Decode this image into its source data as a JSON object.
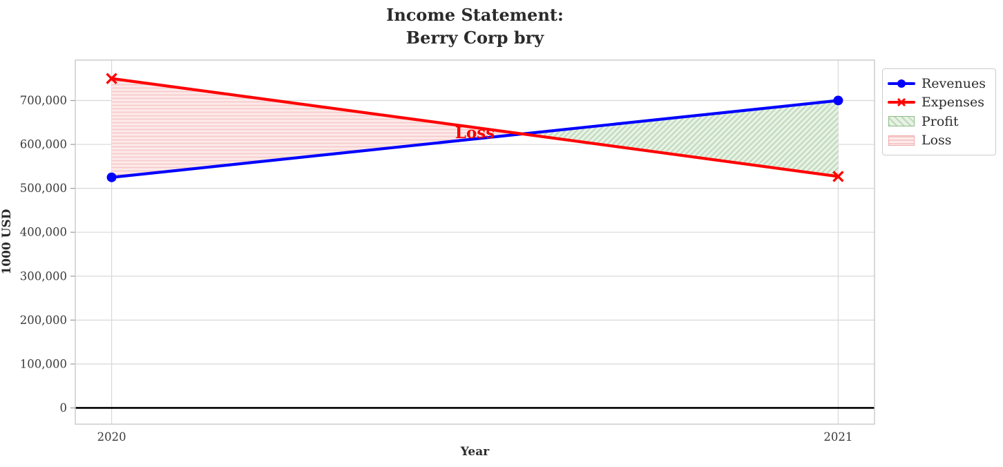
{
  "title": {
    "line1": "Income Statement:",
    "line2": "Berry Corp bry"
  },
  "chart_data": {
    "type": "line",
    "title": "Income Statement: Berry Corp bry",
    "title_lines": [
      "Income Statement:",
      "Berry Corp bry"
    ],
    "xlabel": "Year",
    "ylabel": "1000 USD",
    "x": [
      2020,
      2021
    ],
    "x_tick_labels": [
      "2020",
      "2021"
    ],
    "y_tick_values": [
      0,
      100000,
      200000,
      300000,
      400000,
      500000,
      600000,
      700000
    ],
    "y_tick_labels": [
      "0",
      "100,000",
      "200,000",
      "300,000",
      "400,000",
      "500,000",
      "600,000",
      "700,000"
    ],
    "xlim": [
      2019.95,
      2021.05
    ],
    "ylim": [
      -37000,
      792000
    ],
    "grid": true,
    "zero_line": {
      "value": 0,
      "color": "#000000"
    },
    "series": [
      {
        "name": "Revenues",
        "values": [
          525000,
          700000
        ],
        "color": "#0000ff",
        "marker": "circle"
      },
      {
        "name": "Expenses",
        "values": [
          750000,
          527000
        ],
        "color": "#ff0000",
        "marker": "x"
      }
    ],
    "fills": [
      {
        "name": "Profit",
        "region": "revenues_above_expenses",
        "fill": "#e7f1e5",
        "hatch": "diagonal",
        "hatch_color": "#bdd9b7",
        "edge": "#8cbb85"
      },
      {
        "name": "Loss",
        "region": "expenses_above_revenues",
        "fill": "#fdeaea",
        "hatch": "horizontal",
        "hatch_color": "#f7caca",
        "edge": "#f0a8a8"
      }
    ],
    "annotations": [
      {
        "text": "Loss",
        "x": 2020.5,
        "y": 627000,
        "color": "#ff0000",
        "bold": true
      }
    ],
    "legend": {
      "position": "outside-upper-right",
      "items": [
        {
          "label": "Revenues",
          "swatch": "line-circle"
        },
        {
          "label": "Expenses",
          "swatch": "line-x"
        },
        {
          "label": "Profit",
          "swatch": "hatch-diagonal"
        },
        {
          "label": "Loss",
          "swatch": "hatch-horizontal"
        }
      ]
    },
    "colors": {
      "grid": "#d8d8d8",
      "spine": "#c9c9c9",
      "tick_text": "#3a3a3a"
    }
  }
}
